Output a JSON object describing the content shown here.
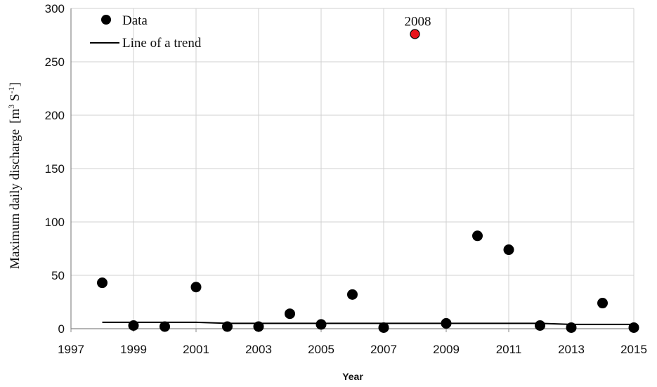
{
  "chart_data": {
    "type": "scatter",
    "xlabel": "Year",
    "ylabel": "Maximum daily discharge",
    "ylabel_unit": {
      "open": "[m",
      "exp1": "3",
      "mid": " S",
      "exp2": "-1",
      "close": "]"
    },
    "xlim": [
      1997,
      2015
    ],
    "ylim": [
      0,
      300
    ],
    "xticks": [
      "1997",
      "1999",
      "2001",
      "2003",
      "2005",
      "2007",
      "2009",
      "2011",
      "2013",
      "2015"
    ],
    "yticks": [
      "0",
      "50",
      "100",
      "150",
      "200",
      "250",
      "300"
    ],
    "grid": true,
    "legend_position": "top-left",
    "legend": {
      "data_label": "Data",
      "trend_label": "Line of a trend"
    },
    "series": [
      {
        "name": "Data",
        "color": "#000000",
        "points": [
          {
            "x": 1998,
            "y": 43
          },
          {
            "x": 1999,
            "y": 3
          },
          {
            "x": 2000,
            "y": 2
          },
          {
            "x": 2001,
            "y": 39
          },
          {
            "x": 2002,
            "y": 2
          },
          {
            "x": 2003,
            "y": 2
          },
          {
            "x": 2004,
            "y": 14
          },
          {
            "x": 2005,
            "y": 4
          },
          {
            "x": 2006,
            "y": 32
          },
          {
            "x": 2007,
            "y": 1
          },
          {
            "x": 2009,
            "y": 5
          },
          {
            "x": 2010,
            "y": 87
          },
          {
            "x": 2011,
            "y": 74
          },
          {
            "x": 2012,
            "y": 3
          },
          {
            "x": 2013,
            "y": 1
          },
          {
            "x": 2014,
            "y": 24
          },
          {
            "x": 2015,
            "y": 1
          }
        ]
      }
    ],
    "outlier": {
      "x": 2008,
      "y": 276,
      "color": "#e8141b",
      "label": "2008"
    },
    "trend": {
      "name": "Line of a trend",
      "color": "#000000",
      "points": [
        {
          "x": 1998,
          "y": 6
        },
        {
          "x": 2001,
          "y": 6
        },
        {
          "x": 2002,
          "y": 5
        },
        {
          "x": 2012,
          "y": 5
        },
        {
          "x": 2013,
          "y": 4
        },
        {
          "x": 2015,
          "y": 4
        }
      ]
    }
  }
}
